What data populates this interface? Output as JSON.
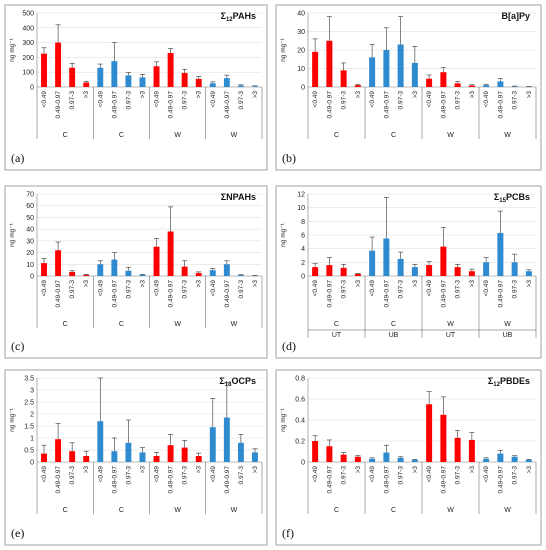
{
  "chart_data": [
    {
      "type": "bar",
      "panel": "(a)",
      "title": "Σ12PAHs",
      "ylabel": "ng mg⁻¹",
      "ylim": [
        0,
        500
      ],
      "yticks": [
        0,
        100,
        200,
        300,
        400,
        500
      ],
      "categories": [
        "<0.49",
        "0.49-0.97",
        "0.97-3",
        ">3",
        "<0.49",
        "0.49-0.97",
        "0.97-3",
        ">3",
        "<0.49",
        "0.49-0.97",
        "0.97-3",
        ">3",
        "<0.49",
        "0.49-0.97",
        "0.97-3",
        ">3"
      ],
      "groups": [
        "C",
        "C",
        "W",
        "W"
      ],
      "group_colors": [
        "#ff0000",
        "#2e8bd0",
        "#ff0000",
        "#2e8bd0"
      ],
      "values": [
        225,
        300,
        130,
        30,
        130,
        175,
        78,
        65,
        140,
        230,
        95,
        55,
        25,
        60,
        10,
        5
      ],
      "errors": [
        40,
        120,
        30,
        8,
        25,
        125,
        20,
        20,
        30,
        30,
        25,
        15,
        10,
        20,
        5,
        3
      ]
    },
    {
      "type": "bar",
      "panel": "(b)",
      "title": "B[a]Py",
      "ylabel": "ng mg⁻¹",
      "ylim": [
        0,
        40
      ],
      "yticks": [
        0,
        10,
        20,
        30,
        40
      ],
      "categories": [
        "<0.49",
        "0.49-0.97",
        "0.97-3",
        ">3",
        "<0.49",
        "0.49-0.97",
        "0.97-3",
        ">3",
        "<0.49",
        "0.49-0.97",
        "0.97-3",
        ">3",
        "<0.49",
        "0.49-0.97",
        "0.97-3",
        ">3"
      ],
      "groups": [
        "C",
        "C",
        "W",
        "W"
      ],
      "group_colors": [
        "#ff0000",
        "#2e8bd0",
        "#ff0000",
        "#2e8bd0"
      ],
      "values": [
        19,
        25,
        9,
        1,
        16,
        20,
        23,
        13,
        4.5,
        8,
        2,
        0.8,
        1,
        3,
        0.3,
        0.2
      ],
      "errors": [
        7,
        13,
        4,
        0.5,
        7,
        12,
        15,
        9,
        2,
        2.5,
        1,
        0.4,
        0.5,
        1.5,
        0.2,
        0.1
      ]
    },
    {
      "type": "bar",
      "panel": "(c)",
      "title": "ΣNPAHs",
      "ylabel": "ng mg⁻¹",
      "ylim": [
        0,
        70
      ],
      "yticks": [
        0,
        10,
        20,
        30,
        40,
        50,
        60,
        70
      ],
      "categories": [
        "<0.49",
        "0.49-0.97",
        "0.97-3",
        ">3",
        "<0.49",
        "0.49-0.97",
        "0.97-3",
        ">3",
        "<0.49",
        "0.49-0.97",
        "0.97-3",
        ">3",
        "<0.49",
        "0.49-0.97",
        "0.97-3",
        ">3"
      ],
      "groups": [
        "C",
        "C",
        "W",
        "W"
      ],
      "group_colors": [
        "#ff0000",
        "#2e8bd0",
        "#ff0000",
        "#2e8bd0"
      ],
      "values": [
        11,
        22,
        3.5,
        1,
        10,
        14,
        4.5,
        1,
        25,
        38,
        8,
        2.5,
        5,
        10,
        0.8,
        0.3
      ],
      "errors": [
        4,
        7,
        1,
        0.4,
        3,
        6,
        3,
        0.4,
        7,
        21,
        5,
        1,
        1.5,
        3,
        0.3,
        0.2
      ]
    },
    {
      "type": "bar",
      "panel": "(d)",
      "title": "Σ15PCBs",
      "ylabel": "ng mg⁻¹",
      "ylim": [
        0,
        12
      ],
      "yticks": [
        0,
        2,
        4,
        6,
        8,
        10,
        12
      ],
      "categories": [
        "<0.49",
        "0.49-0.97",
        "0.97-3",
        ">3",
        "<0.49",
        "0.49-0.97",
        "0.97-3",
        ">3",
        "<0.49",
        "0.49-0.97",
        "0.97-3",
        ">3",
        "<0.49",
        "0.49-0.97",
        "0.97-3",
        ">3"
      ],
      "groups": [
        "C",
        "C",
        "W",
        "W"
      ],
      "subgroups": [
        "UT",
        "UB",
        "UT",
        "UB"
      ],
      "group_colors": [
        "#ff0000",
        "#2e8bd0",
        "#ff0000",
        "#2e8bd0"
      ],
      "values": [
        1.3,
        1.6,
        1.2,
        0.3,
        3.7,
        5.5,
        2.5,
        1.3,
        1.6,
        4.3,
        1.3,
        0.7,
        2,
        6.3,
        2,
        0.7
      ],
      "errors": [
        0.5,
        1.1,
        0.5,
        0.1,
        2,
        6,
        1,
        0.4,
        0.5,
        2.8,
        0.4,
        0.3,
        0.7,
        3.2,
        1.2,
        0.2
      ]
    },
    {
      "type": "bar",
      "panel": "(e)",
      "title": "Σ18OCPs",
      "ylabel": "ng mg⁻¹",
      "ylim": [
        0,
        3.5
      ],
      "yticks": [
        0,
        0.5,
        1,
        1.5,
        2,
        2.5,
        3,
        3.5
      ],
      "categories": [
        "<0.49",
        "0.49-0.97",
        "0.97-3",
        ">3",
        "<0.49",
        "0.49-0.97",
        "0.97-3",
        ">3",
        "<0.49",
        "0.49-0.97",
        "0.97-3",
        ">3",
        "<0.49",
        "0.49-0.97",
        "0.97-3",
        ">3"
      ],
      "groups": [
        "C",
        "C",
        "W",
        "W"
      ],
      "group_colors": [
        "#ff0000",
        "#2e8bd0",
        "#ff0000",
        "#2e8bd0"
      ],
      "values": [
        0.35,
        0.95,
        0.45,
        0.25,
        1.7,
        0.45,
        0.8,
        0.4,
        0.25,
        0.7,
        0.6,
        0.25,
        1.45,
        1.85,
        0.8,
        0.4
      ],
      "errors": [
        0.35,
        0.65,
        0.35,
        0.2,
        1.8,
        0.55,
        0.95,
        0.2,
        0.15,
        0.45,
        0.3,
        0.12,
        1.2,
        1.45,
        0.35,
        0.15
      ]
    },
    {
      "type": "bar",
      "panel": "(f)",
      "title": "Σ12PBDEs",
      "ylabel": "ng mg⁻¹",
      "ylim": [
        0,
        0.8
      ],
      "yticks": [
        0,
        0.2,
        0.4,
        0.6,
        0.8
      ],
      "categories": [
        "<0.49",
        "0.49-0.97",
        "0.97-3",
        ">3",
        "<0.49",
        "0.49-0.97",
        "0.97-3",
        ">3",
        "<0.49",
        "0.49-0.97",
        "0.97-3",
        ">3",
        "<0.49",
        "0.49-0.97",
        "0.97-3",
        ">3"
      ],
      "groups": [
        "C",
        "C",
        "W",
        "W"
      ],
      "group_colors": [
        "#ff0000",
        "#2e8bd0",
        "#ff0000",
        "#2e8bd0"
      ],
      "values": [
        0.2,
        0.15,
        0.07,
        0.05,
        0.03,
        0.09,
        0.04,
        0.02,
        0.55,
        0.45,
        0.23,
        0.21,
        0.03,
        0.08,
        0.05,
        0.02
      ],
      "errors": [
        0.05,
        0.06,
        0.02,
        0.01,
        0.01,
        0.07,
        0.01,
        0.005,
        0.12,
        0.17,
        0.07,
        0.07,
        0.01,
        0.03,
        0.01,
        0.005
      ]
    }
  ]
}
